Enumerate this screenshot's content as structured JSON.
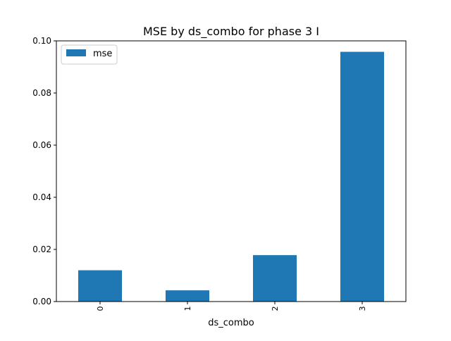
{
  "chart_data": {
    "type": "bar",
    "title": "MSE by ds_combo for phase 3 I",
    "xlabel": "ds_combo",
    "ylabel": "",
    "categories": [
      "0",
      "1",
      "2",
      "3"
    ],
    "series": [
      {
        "name": "mse",
        "values": [
          0.012,
          0.0043,
          0.0178,
          0.0958
        ],
        "color": "#1f77b4"
      }
    ],
    "ylim": [
      0,
      0.1
    ],
    "yticks": [
      0.0,
      0.02,
      0.04,
      0.06,
      0.08,
      0.1
    ],
    "ytick_labels": [
      "0.00",
      "0.02",
      "0.04",
      "0.06",
      "0.08",
      "0.10"
    ],
    "grid": false,
    "legend_position": "top-left",
    "x_tick_rotation": "vertical"
  }
}
